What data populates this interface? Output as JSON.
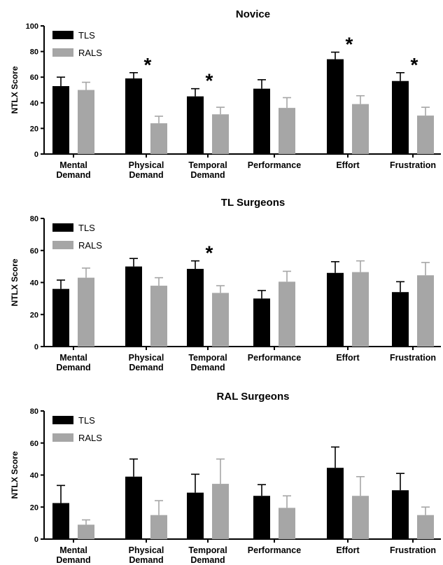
{
  "chart_data": [
    {
      "type": "bar",
      "title": "Novice",
      "ylabel": "NTLX Score",
      "ylim": [
        0,
        100
      ],
      "yticks": [
        0,
        20,
        40,
        60,
        80,
        100
      ],
      "categories": [
        [
          "Mental",
          "Demand"
        ],
        [
          "Physical",
          "Demand"
        ],
        [
          "Temporal",
          "Demand"
        ],
        [
          "Performance"
        ],
        [
          "Effort"
        ],
        [
          "Frustration"
        ]
      ],
      "series": [
        {
          "name": "TLS",
          "color": "#000000",
          "values": [
            53,
            59,
            45,
            51,
            74,
            57
          ],
          "errors": [
            7,
            4.5,
            6,
            7,
            5.5,
            6.5
          ]
        },
        {
          "name": "RALS",
          "color": "#a6a6a6",
          "values": [
            50,
            24,
            31,
            36,
            39,
            30
          ],
          "errors": [
            6,
            5.5,
            5.5,
            8,
            6.5,
            6.5
          ]
        }
      ],
      "significance": [
        false,
        true,
        true,
        false,
        true,
        true
      ],
      "significance_marker": "*",
      "legend_position": "top-left"
    },
    {
      "type": "bar",
      "title": "TL Surgeons",
      "ylabel": "NTLX Score",
      "ylim": [
        0,
        80
      ],
      "yticks": [
        0,
        20,
        40,
        60,
        80
      ],
      "categories": [
        [
          "Mental",
          "Demand"
        ],
        [
          "Physical",
          "Demand"
        ],
        [
          "Temporal",
          "Demand"
        ],
        [
          "Performance"
        ],
        [
          "Effort"
        ],
        [
          "Frustration"
        ]
      ],
      "series": [
        {
          "name": "TLS",
          "color": "#000000",
          "values": [
            36,
            50,
            48.5,
            30,
            46,
            34
          ],
          "errors": [
            5.5,
            5,
            5,
            5,
            7,
            6.5
          ]
        },
        {
          "name": "RALS",
          "color": "#a6a6a6",
          "values": [
            43,
            38,
            33.5,
            40.5,
            46.5,
            44.5
          ],
          "errors": [
            6,
            5,
            4.5,
            6.5,
            7,
            8
          ]
        }
      ],
      "significance": [
        false,
        false,
        true,
        false,
        false,
        false
      ],
      "significance_marker": "*",
      "legend_position": "top-left"
    },
    {
      "type": "bar",
      "title": "RAL Surgeons",
      "ylabel": "NTLX Score",
      "ylim": [
        0,
        80
      ],
      "yticks": [
        0,
        20,
        40,
        60,
        80
      ],
      "categories": [
        [
          "Mental",
          "Demand"
        ],
        [
          "Physical",
          "Demand"
        ],
        [
          "Temporal",
          "Demand"
        ],
        [
          "Performance"
        ],
        [
          "Effort"
        ],
        [
          "Frustration"
        ]
      ],
      "series": [
        {
          "name": "TLS",
          "color": "#000000",
          "values": [
            22.5,
            39,
            29,
            27,
            44.5,
            30.5
          ],
          "errors": [
            11,
            11,
            11.5,
            7,
            13,
            10.5
          ]
        },
        {
          "name": "RALS",
          "color": "#a6a6a6",
          "values": [
            9,
            15,
            34.5,
            19.5,
            27,
            15
          ],
          "errors": [
            3,
            9,
            15.5,
            7.5,
            12,
            5
          ]
        }
      ],
      "significance": [
        false,
        false,
        false,
        false,
        false,
        false
      ],
      "significance_marker": "*",
      "legend_position": "top-left"
    }
  ]
}
